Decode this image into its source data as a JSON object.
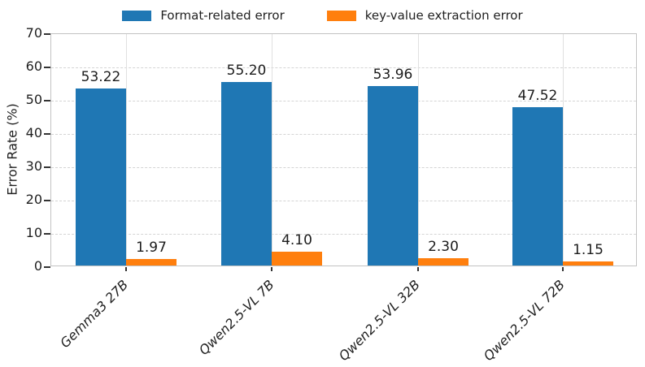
{
  "chart_data": {
    "type": "bar",
    "title": "",
    "categories": [
      "Gemma3 27B",
      "Qwen2.5-VL 7B",
      "Qwen2.5-VL 32B",
      "Qwen2.5-VL 72B"
    ],
    "series": [
      {
        "name": "Format-related error",
        "color": "#1f77b4",
        "values": [
          53.22,
          55.2,
          53.96,
          47.52
        ],
        "value_labels": [
          "53.22",
          "55.20",
          "53.96",
          "47.52"
        ]
      },
      {
        "name": "key-value extraction error",
        "color": "#ff7f0e",
        "values": [
          1.97,
          4.1,
          2.3,
          1.15
        ],
        "value_labels": [
          "1.97",
          "4.10",
          "2.30",
          "1.15"
        ]
      }
    ],
    "xlabel": "",
    "ylabel": "Error Rate (%)",
    "ylim": [
      0,
      70
    ],
    "yticks": [
      0,
      10,
      20,
      30,
      40,
      50,
      60,
      70
    ],
    "grid": {
      "horizontal": "dashed",
      "vertical_at_xticks": "solid"
    },
    "legend_position": "top-center-outside",
    "xtick_style": "italic-rotated-45"
  },
  "colors": {
    "bar_blue": "#1f77b4",
    "bar_orange": "#ff7f0e",
    "grid_dashed": "#d4d4d4",
    "grid_vertical": "#e0e0e0",
    "spine": "#c3c3c3",
    "tick_mark": "#333333",
    "text": "#1f1f1f"
  }
}
